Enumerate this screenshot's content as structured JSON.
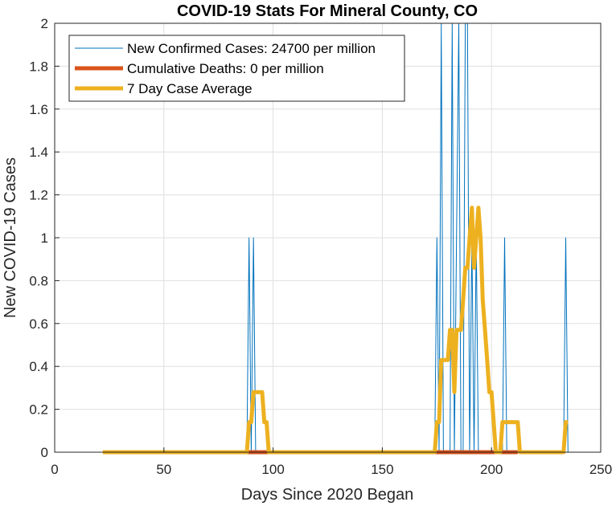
{
  "chart_data": {
    "type": "line",
    "title": "COVID-19 Stats For Mineral County, CO",
    "xlabel": "Days Since 2020 Began",
    "ylabel": "New COVID-19 Cases",
    "xlim": [
      0,
      250
    ],
    "ylim": [
      0,
      2
    ],
    "xticks": [
      0,
      50,
      100,
      150,
      200,
      250
    ],
    "yticks": [
      0,
      0.2,
      0.4,
      0.6,
      0.8,
      1,
      1.2,
      1.4,
      1.6,
      1.8,
      2
    ],
    "grid": true,
    "legend_position": "top-left",
    "series": [
      {
        "name": "New Confirmed Cases: 24700 per million",
        "color": "#0072BD",
        "style": "thin",
        "points": [
          [
            22,
            0
          ],
          [
            88,
            0
          ],
          [
            89,
            1
          ],
          [
            90,
            0
          ],
          [
            91,
            1
          ],
          [
            92,
            0
          ],
          [
            174,
            0
          ],
          [
            175,
            1
          ],
          [
            176,
            0
          ],
          [
            177,
            2
          ],
          [
            178,
            0
          ],
          [
            181,
            0
          ],
          [
            182,
            2
          ],
          [
            183,
            0
          ],
          [
            184,
            1
          ],
          [
            185,
            2
          ],
          [
            186,
            0
          ],
          [
            187,
            0
          ],
          [
            188,
            2
          ],
          [
            189,
            2
          ],
          [
            190,
            0
          ],
          [
            191,
            1
          ],
          [
            192,
            0
          ],
          [
            193,
            1
          ],
          [
            194,
            0
          ],
          [
            205,
            0
          ],
          [
            206,
            1
          ],
          [
            207,
            0
          ],
          [
            233,
            0
          ],
          [
            234,
            1
          ],
          [
            235,
            0
          ]
        ]
      },
      {
        "name": "Cumulative Deaths: 0 per million",
        "color": "#D95319",
        "style": "thick",
        "points": [
          [
            88,
            0
          ],
          [
            99,
            0
          ],
          [
            175,
            0
          ],
          [
            212,
            0
          ]
        ]
      },
      {
        "name": "7 Day Case Average",
        "color": "#EDB120",
        "style": "thick",
        "points": [
          [
            22,
            0
          ],
          [
            88,
            0
          ],
          [
            89,
            0.14
          ],
          [
            90,
            0.14
          ],
          [
            91,
            0.28
          ],
          [
            95,
            0.28
          ],
          [
            96,
            0.14
          ],
          [
            97,
            0.14
          ],
          [
            98,
            0
          ],
          [
            174,
            0
          ],
          [
            175,
            0.14
          ],
          [
            176,
            0.14
          ],
          [
            177,
            0.43
          ],
          [
            180,
            0.43
          ],
          [
            181,
            0.57
          ],
          [
            182,
            0.57
          ],
          [
            183,
            0.28
          ],
          [
            184,
            0.57
          ],
          [
            185,
            0.57
          ],
          [
            186,
            0.57
          ],
          [
            187,
            0.71
          ],
          [
            188,
            0.86
          ],
          [
            189,
            0.86
          ],
          [
            190,
            1.0
          ],
          [
            191,
            1.14
          ],
          [
            192,
            0.86
          ],
          [
            193,
            1.0
          ],
          [
            194,
            1.14
          ],
          [
            195,
            1.0
          ],
          [
            196,
            0.71
          ],
          [
            197,
            0.57
          ],
          [
            198,
            0.43
          ],
          [
            199,
            0.28
          ],
          [
            200,
            0.28
          ],
          [
            201,
            0.14
          ],
          [
            202,
            0
          ],
          [
            204,
            0
          ],
          [
            205,
            0.14
          ],
          [
            212,
            0.14
          ],
          [
            213,
            0
          ],
          [
            233,
            0
          ],
          [
            234,
            0.14
          ],
          [
            235,
            0.14
          ]
        ]
      }
    ]
  }
}
